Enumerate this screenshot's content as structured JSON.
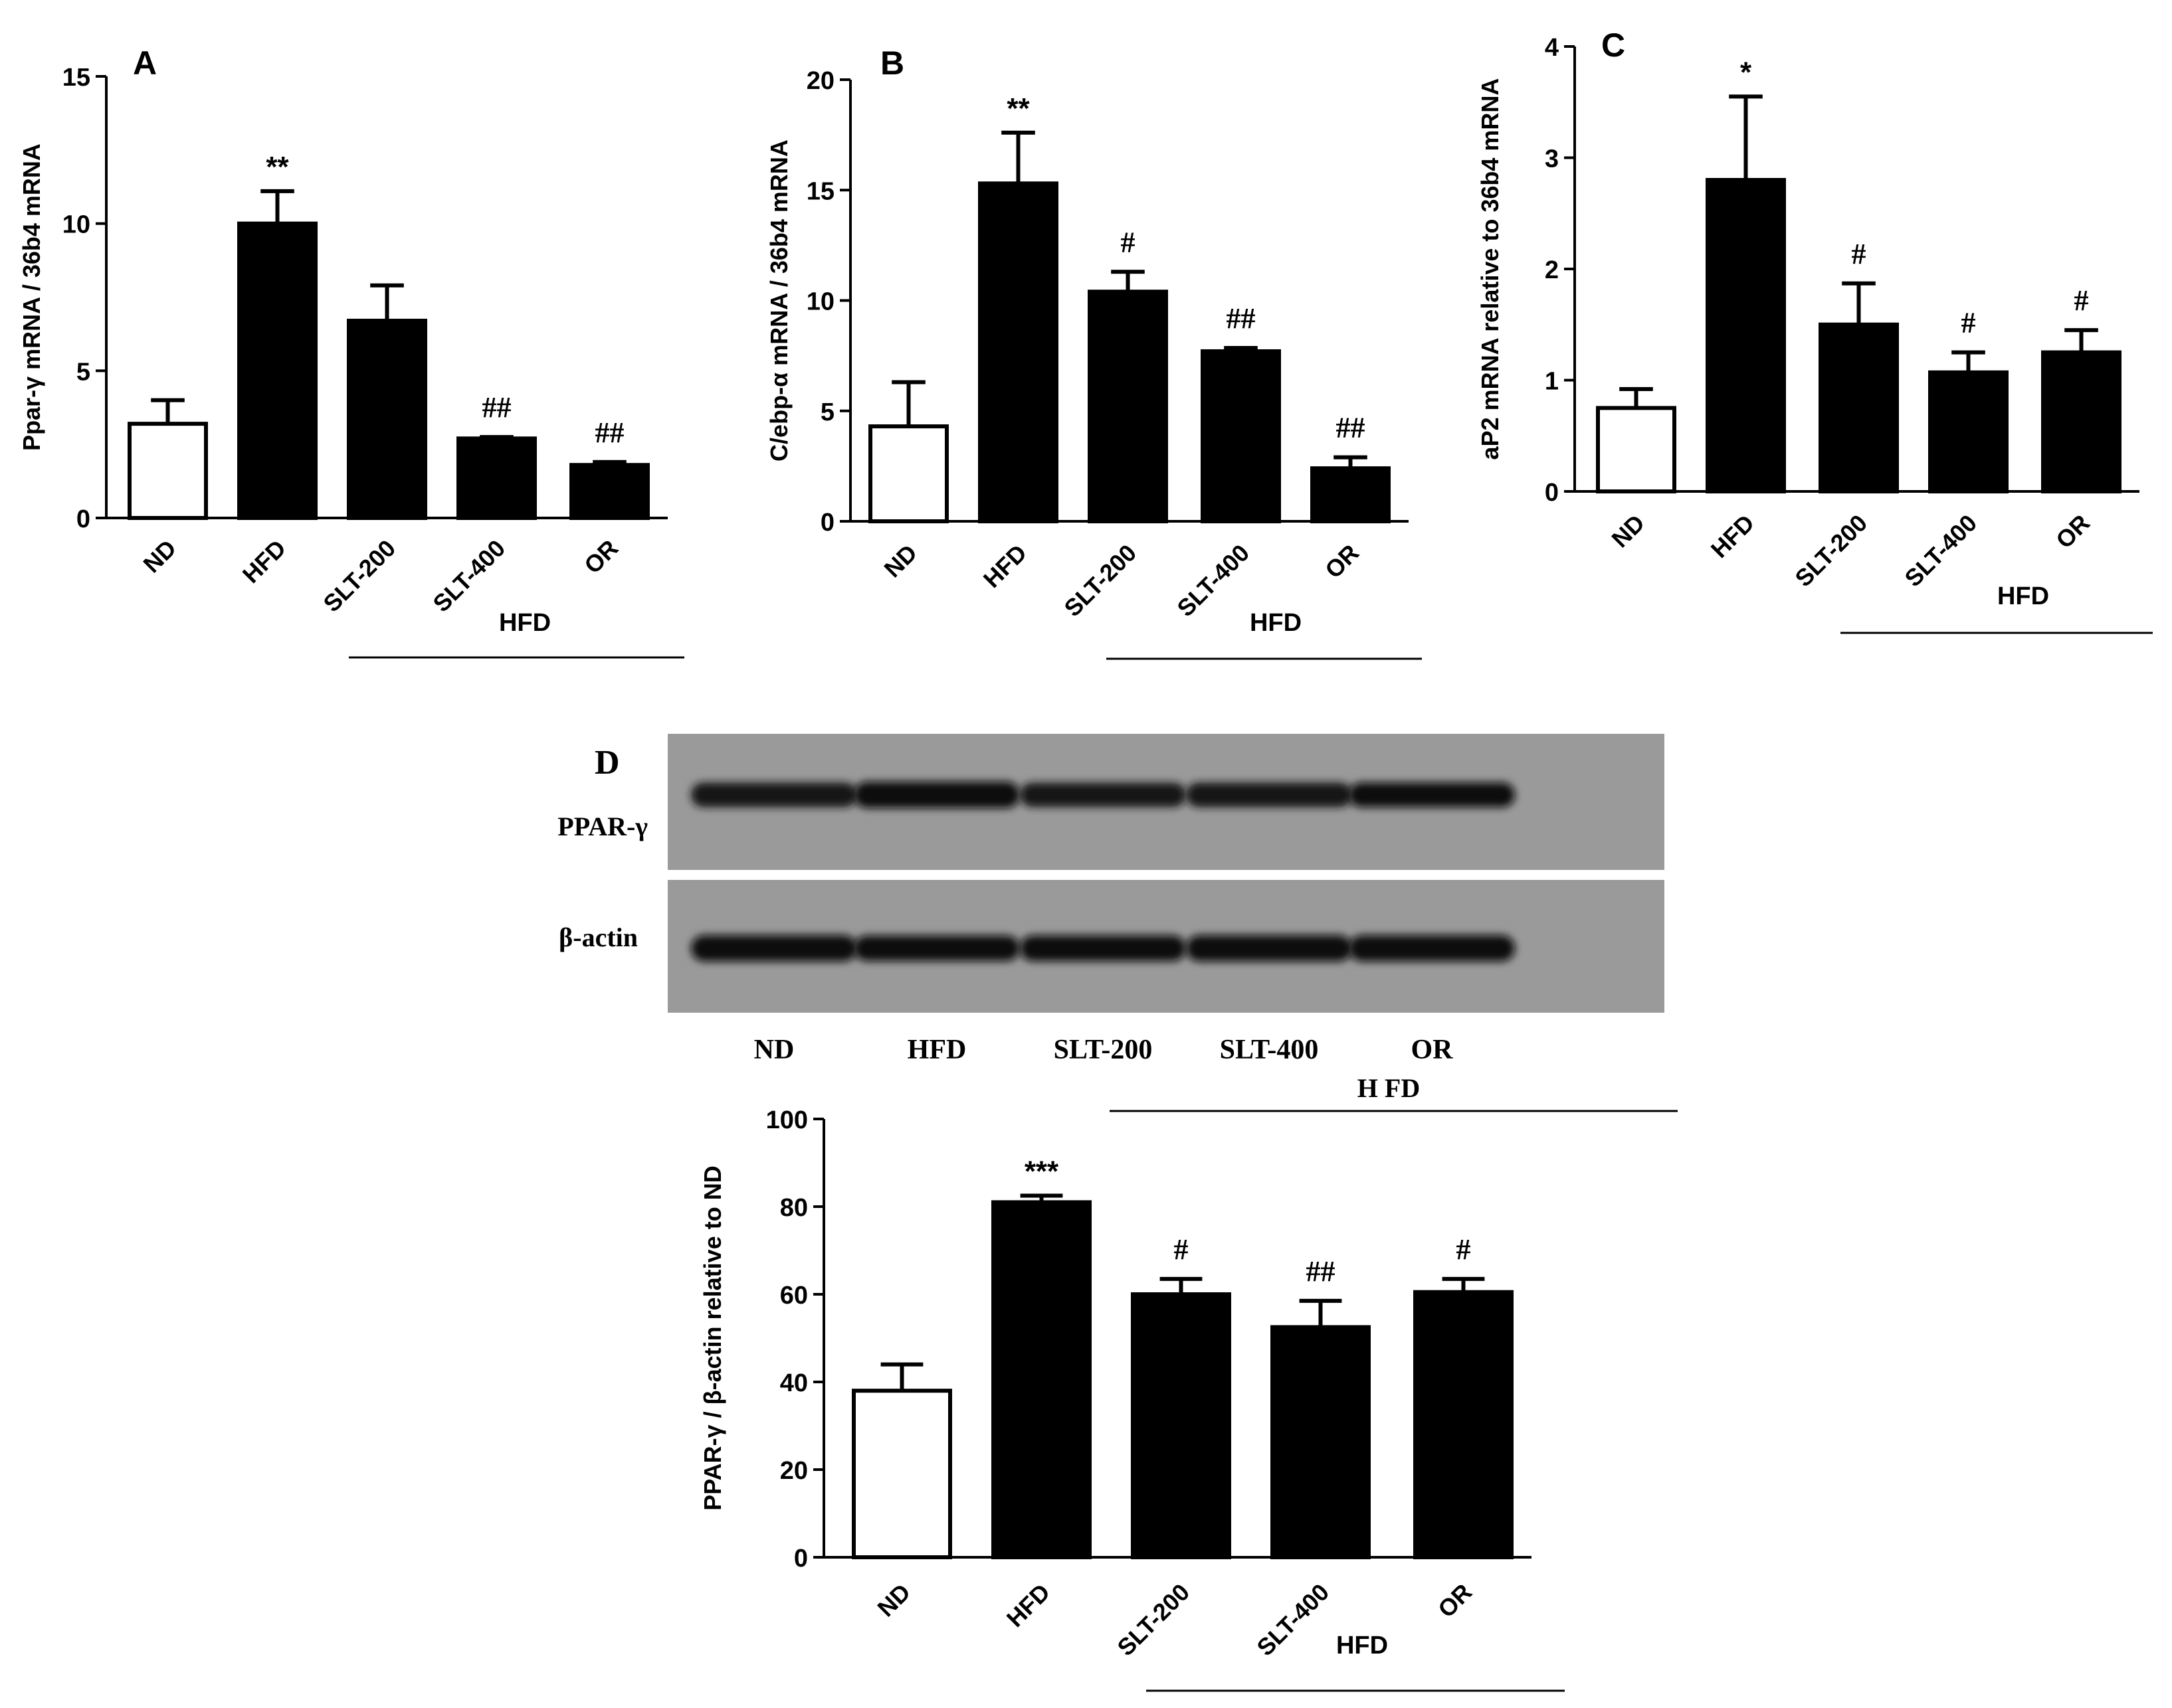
{
  "charts": [
    {
      "panel": "A",
      "chart_data": {
        "type": "bar",
        "categories": [
          "ND",
          "HFD",
          "SLT-200",
          "SLT-400",
          "OR"
        ],
        "values": [
          3.2,
          10.0,
          6.7,
          2.7,
          1.8
        ],
        "errors": [
          0.8,
          1.1,
          1.2,
          0.05,
          0.1
        ],
        "annotations": [
          "",
          "**",
          "",
          "##",
          "##"
        ],
        "bar_colors": [
          "#ffffff",
          "#000000",
          "#000000",
          "#000000",
          "#000000"
        ],
        "ylabel": "Ppar-γ mRNA / 36b4 mRNA",
        "yticks": [
          0,
          5,
          10,
          15
        ],
        "ylim": [
          0,
          15
        ],
        "group_label": "HFD",
        "group_start": 2
      }
    },
    {
      "panel": "B",
      "chart_data": {
        "type": "bar",
        "categories": [
          "ND",
          "HFD",
          "SLT-200",
          "SLT-400",
          "OR"
        ],
        "values": [
          4.3,
          15.3,
          10.4,
          7.7,
          2.4
        ],
        "errors": [
          2.0,
          2.3,
          0.9,
          0.15,
          0.5
        ],
        "annotations": [
          "",
          "**",
          "#",
          "##",
          "##"
        ],
        "bar_colors": [
          "#ffffff",
          "#000000",
          "#000000",
          "#000000",
          "#000000"
        ],
        "ylabel": "C/ebp-α mRNA / 36b4 mRNA",
        "yticks": [
          0,
          5,
          10,
          15,
          20
        ],
        "ylim": [
          0,
          20
        ],
        "group_label": "HFD",
        "group_start": 2
      }
    },
    {
      "panel": "C",
      "chart_data": {
        "type": "bar",
        "categories": [
          "ND",
          "HFD",
          "SLT-200",
          "SLT-400",
          "OR"
        ],
        "values": [
          0.75,
          2.8,
          1.5,
          1.07,
          1.25
        ],
        "errors": [
          0.17,
          0.75,
          0.37,
          0.18,
          0.2
        ],
        "annotations": [
          "",
          "*",
          "#",
          "#",
          "#"
        ],
        "bar_colors": [
          "#ffffff",
          "#000000",
          "#000000",
          "#000000",
          "#000000"
        ],
        "ylabel": "aP2 mRNA relative to 36b4 mRNA",
        "yticks": [
          0,
          1,
          2,
          3,
          4
        ],
        "ylim": [
          0,
          4
        ],
        "group_label": "HFD",
        "group_start": 2
      }
    },
    {
      "panel": "",
      "chart_data": {
        "type": "bar",
        "categories": [
          "ND",
          "HFD",
          "SLT-200",
          "SLT-400",
          "OR"
        ],
        "values": [
          38,
          81,
          60,
          52.5,
          60.5
        ],
        "errors": [
          6,
          1.5,
          3.5,
          6,
          3
        ],
        "annotations": [
          "",
          "***",
          "#",
          "##",
          "#"
        ],
        "bar_colors": [
          "#ffffff",
          "#000000",
          "#000000",
          "#000000",
          "#000000"
        ],
        "ylabel": "PPAR-γ / β-actin relative to ND",
        "yticks": [
          0,
          20,
          40,
          60,
          80,
          100
        ],
        "ylim": [
          0,
          100
        ],
        "group_label": "HFD",
        "group_start": 2
      }
    }
  ],
  "blot": {
    "panel": "D",
    "rows": [
      {
        "label": "PPAR-γ",
        "intensities": [
          0.75,
          1.0,
          0.7,
          0.75,
          0.78
        ]
      },
      {
        "label": "β-actin",
        "intensities": [
          0.95,
          0.85,
          0.9,
          0.95,
          0.95
        ]
      }
    ],
    "lanes": [
      "ND",
      "HFD",
      "SLT-200",
      "SLT-400",
      "OR"
    ],
    "group_label": "H FD",
    "group_start": 2
  }
}
